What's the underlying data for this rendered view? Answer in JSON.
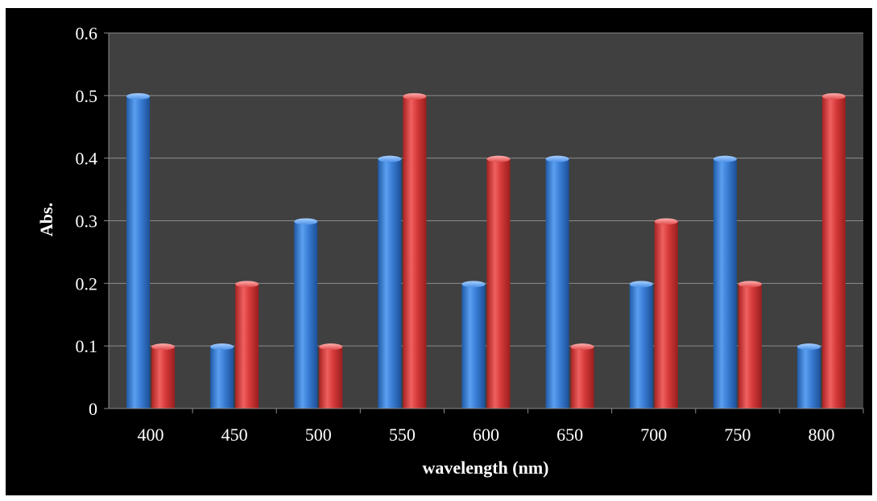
{
  "chart_data": {
    "type": "bar",
    "title": "",
    "xlabel": "wavelength (nm)",
    "ylabel": "Abs.",
    "categories": [
      "400",
      "450",
      "500",
      "550",
      "600",
      "650",
      "700",
      "750",
      "800"
    ],
    "series": [
      {
        "values": [
          0.5,
          0.1,
          0.3,
          0.4,
          0.2,
          0.4,
          0.2,
          0.4,
          0.1
        ],
        "color": "#3b7fd4"
      },
      {
        "values": [
          0.1,
          0.2,
          0.1,
          0.5,
          0.4,
          0.1,
          0.3,
          0.2,
          0.5
        ],
        "color": "#d63a3a"
      }
    ],
    "ylim": [
      0,
      0.6
    ],
    "yticks": [
      "0",
      "0.1",
      "0.2",
      "0.3",
      "0.4",
      "0.5",
      "0.6"
    ],
    "grid": true,
    "legend": "none",
    "plot_background": "#404040",
    "background": "#000000"
  }
}
